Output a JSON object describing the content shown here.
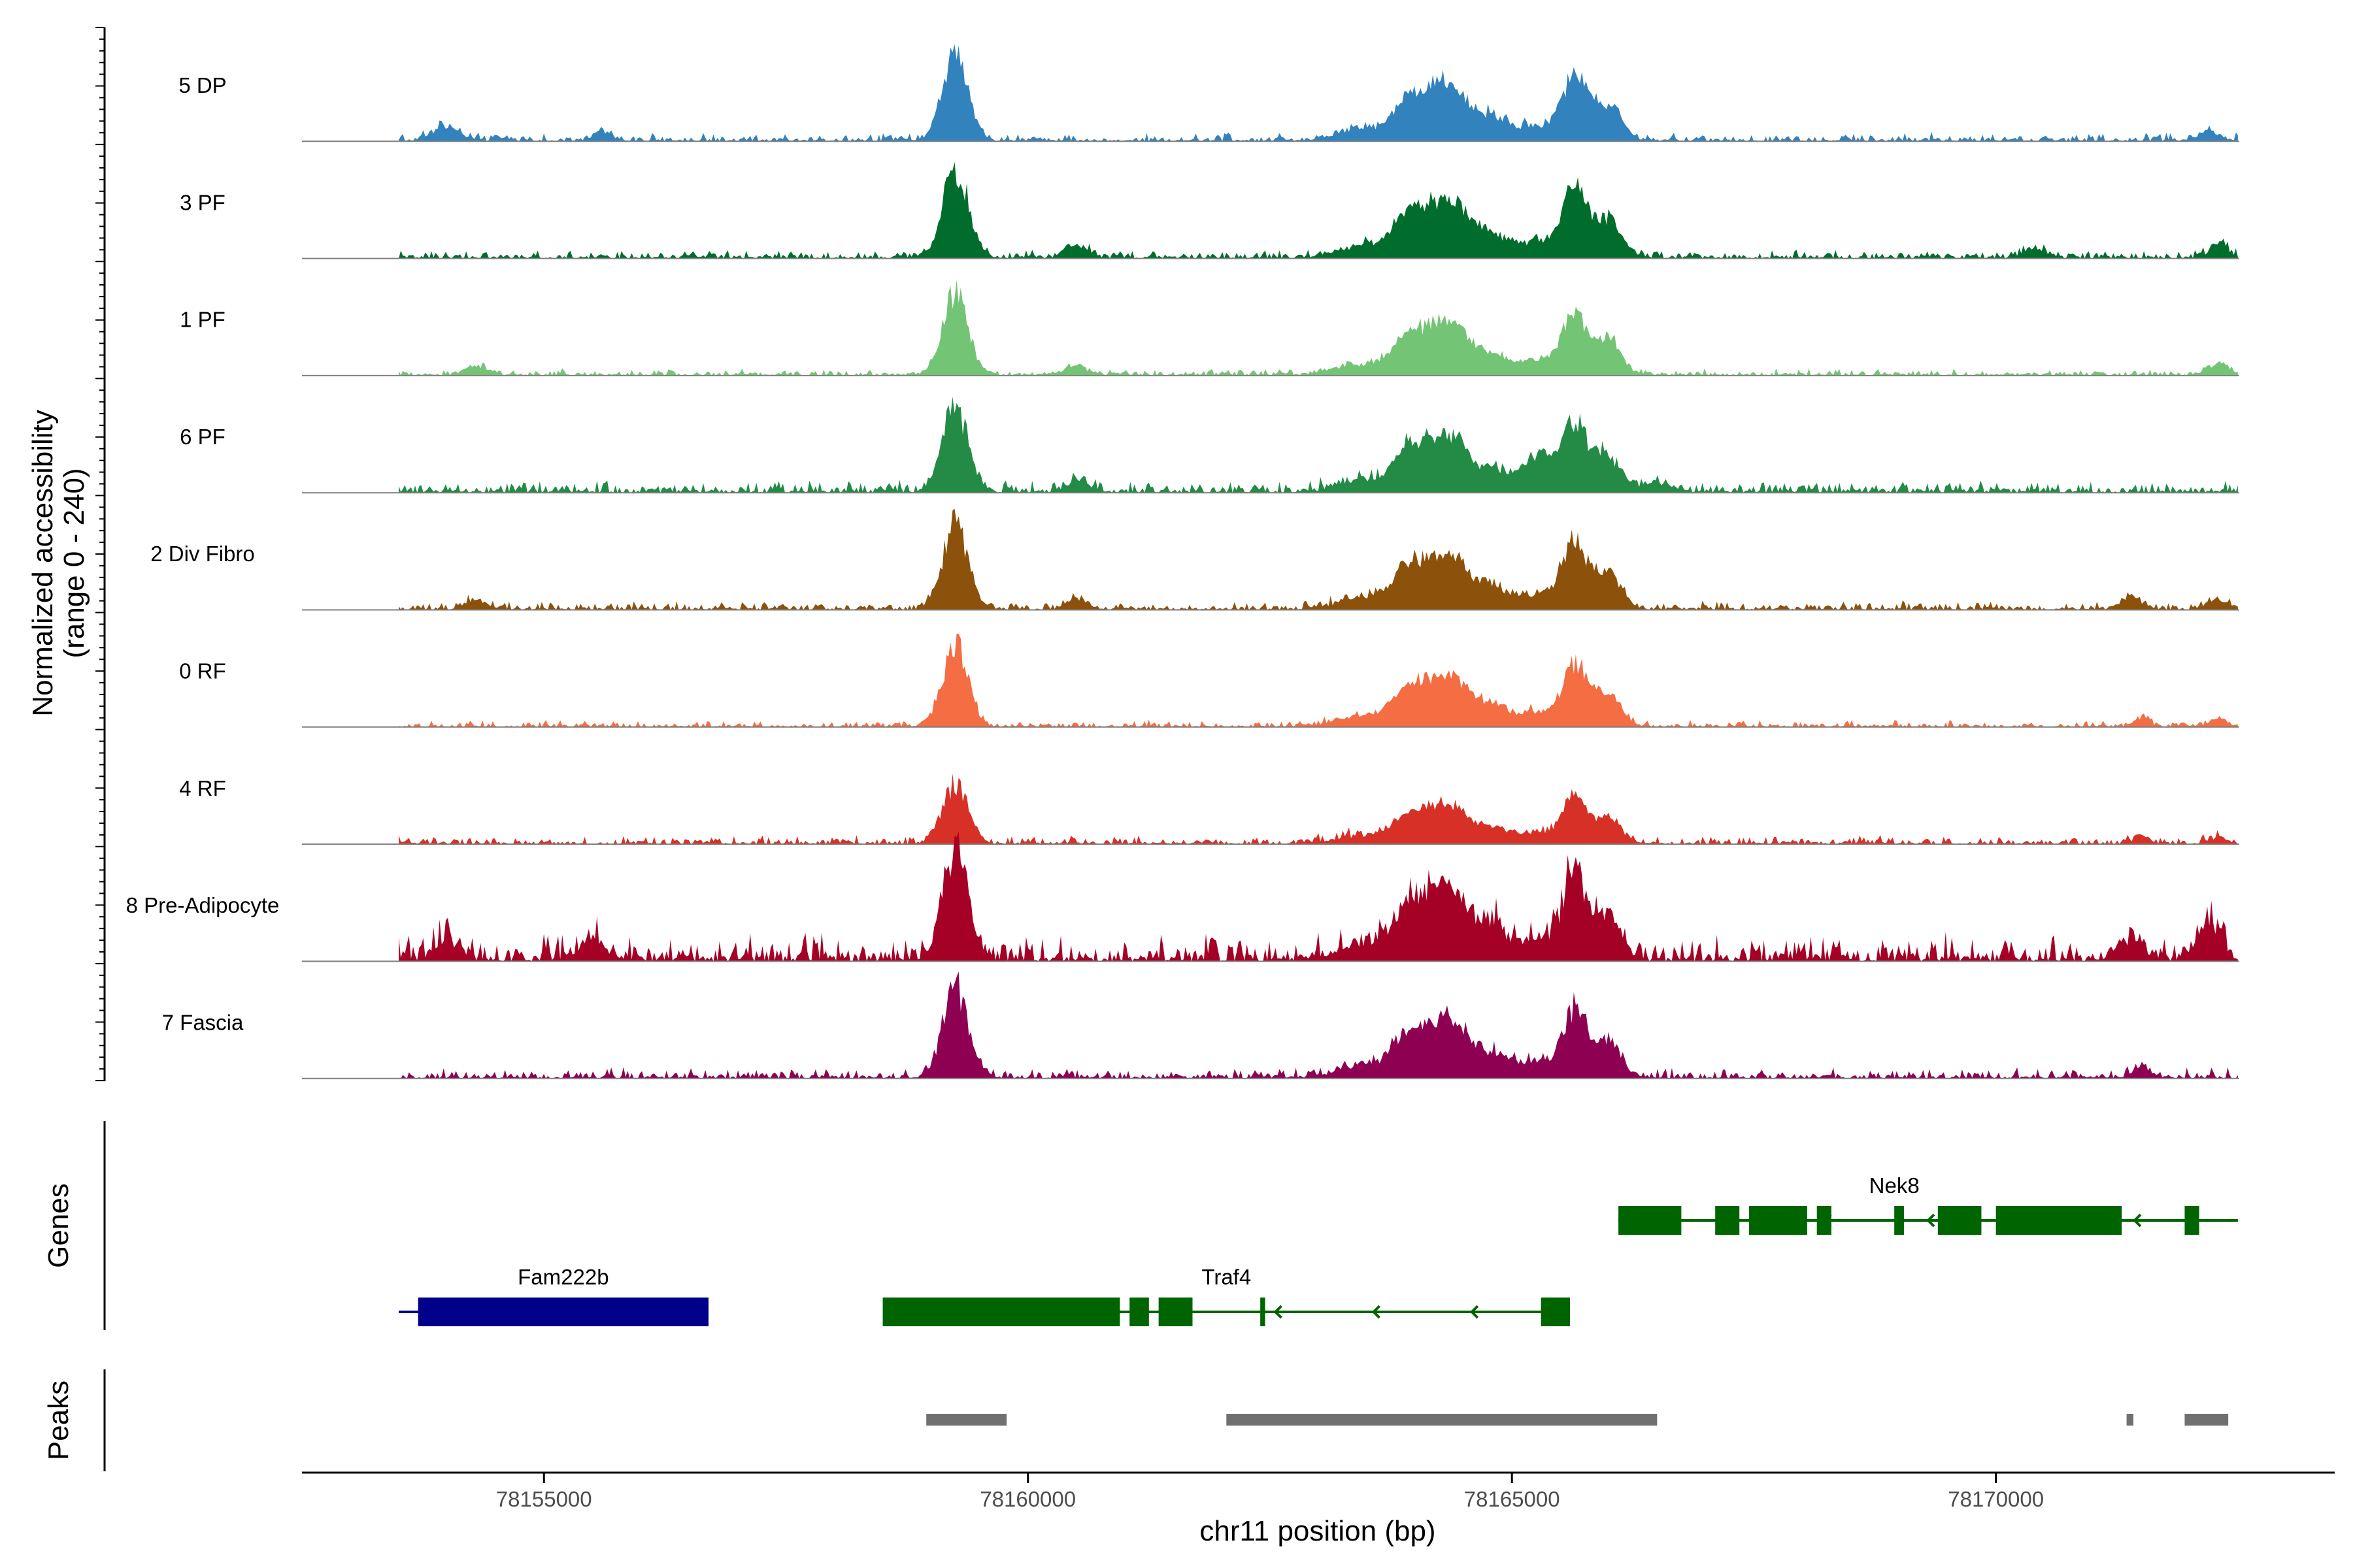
{
  "chart_data": {
    "type": "area",
    "title": "",
    "ylabel_line1": "Normalized accessibility",
    "ylabel_line2": "(range 0 - 240)",
    "xlabel": "chr11 position (bp)",
    "xlim": [
      78152500,
      78173500
    ],
    "ylim": [
      0,
      240
    ],
    "xticks": [
      78155000,
      78160000,
      78165000,
      78170000
    ],
    "xtick_labels": [
      "78155000",
      "78160000",
      "78165000",
      "78170000"
    ],
    "tracks": [
      {
        "name": "5 DP",
        "color": "#3182BD",
        "noise": 5,
        "scale": 1.0,
        "extra": [
          [
            78154000,
            18,
            140
          ],
          [
            78155600,
            14,
            90
          ],
          [
            78172200,
            14,
            110
          ]
        ]
      },
      {
        "name": "3 PF",
        "color": "#006D2C",
        "noise": 5,
        "scale": 1.05,
        "extra": [
          [
            78160500,
            16,
            110
          ],
          [
            78170400,
            14,
            110
          ],
          [
            78172300,
            20,
            90
          ]
        ]
      },
      {
        "name": "1 PF",
        "color": "#74C476",
        "noise": 4,
        "scale": 0.95,
        "extra": [
          [
            78154300,
            14,
            110
          ],
          [
            78160500,
            14,
            110
          ],
          [
            78172300,
            18,
            110
          ]
        ]
      },
      {
        "name": "6 PF",
        "color": "#238B45",
        "noise": 7,
        "scale": 1.0,
        "extra": [
          [
            78160500,
            16,
            110
          ],
          [
            78165300,
            35,
            160
          ],
          [
            78166500,
            10,
            180
          ]
        ]
      },
      {
        "name": "2 Div Fibro",
        "color": "#8C510A",
        "noise": 5,
        "scale": 1.0,
        "extra": [
          [
            78154300,
            14,
            110
          ],
          [
            78160500,
            14,
            110
          ],
          [
            78171400,
            18,
            110
          ],
          [
            78172300,
            14,
            110
          ]
        ]
      },
      {
        "name": "0 RF",
        "color": "#F46D43",
        "noise": 4,
        "scale": 0.95,
        "extra": [
          [
            78171500,
            14,
            80
          ],
          [
            78172300,
            14,
            80
          ]
        ]
      },
      {
        "name": "4 RF",
        "color": "#D73027",
        "noise": 5,
        "scale": 0.7,
        "extra": [
          [
            78171500,
            14,
            80
          ],
          [
            78172300,
            14,
            80
          ]
        ]
      },
      {
        "name": "8 Pre-Adipocyte",
        "color": "#A50026",
        "noise": 16,
        "scale": 1.25,
        "extra": [
          [
            78154000,
            22,
            120
          ],
          [
            78155500,
            26,
            120
          ],
          [
            78171400,
            22,
            120
          ],
          [
            78172200,
            45,
            120
          ]
        ]
      },
      {
        "name": "7 Fascia",
        "color": "#8E0152",
        "noise": 6,
        "scale": 1.05,
        "extra": [
          [
            78171500,
            16,
            90
          ]
        ]
      }
    ],
    "common_peaks": [
      [
        78159250,
        130,
        130
      ],
      [
        78163500,
        18,
        280
      ],
      [
        78163900,
        45,
        140
      ],
      [
        78164200,
        68,
        170
      ],
      [
        78164450,
        50,
        140
      ],
      [
        78164800,
        35,
        170
      ],
      [
        78165250,
        22,
        150
      ],
      [
        78165650,
        100,
        130
      ],
      [
        78166000,
        52,
        130
      ]
    ],
    "genes": {
      "track_label": "Genes",
      "items": [
        {
          "name": "Fam222b",
          "strand": "+",
          "color": "#00008B",
          "start": 78153500,
          "end": 78156700,
          "row": 2,
          "exons": [
            [
              78153700,
              78156700
            ]
          ],
          "utr": [
            [
              78153500,
              78153700
            ]
          ]
        },
        {
          "name": "Traf4",
          "strand": "-",
          "color": "#006400",
          "start": 78158500,
          "end": 78165600,
          "row": 2,
          "exons": [
            [
              78158500,
              78160950
            ],
            [
              78161050,
              78161250
            ],
            [
              78161350,
              78161700
            ],
            [
              78162400,
              78162450
            ],
            [
              78165300,
              78165600
            ]
          ],
          "utr": []
        },
        {
          "name": "Nek8",
          "strand": "-",
          "color": "#006400",
          "start": 78166100,
          "end": 78172500,
          "row": 1,
          "exons": [
            [
              78166100,
              78166750
            ],
            [
              78167100,
              78167350
            ],
            [
              78167450,
              78168050
            ],
            [
              78168150,
              78168300
            ],
            [
              78168950,
              78169050
            ],
            [
              78169400,
              78169850
            ],
            [
              78170000,
              78171300
            ],
            [
              78171950,
              78172100
            ]
          ],
          "utr": []
        }
      ]
    },
    "peaks": {
      "track_label": "Peaks",
      "color": "#707070",
      "regions": [
        [
          78158950,
          78159780
        ],
        [
          78162050,
          78166500
        ],
        [
          78171350,
          78171420
        ],
        [
          78171950,
          78172400
        ]
      ]
    }
  }
}
